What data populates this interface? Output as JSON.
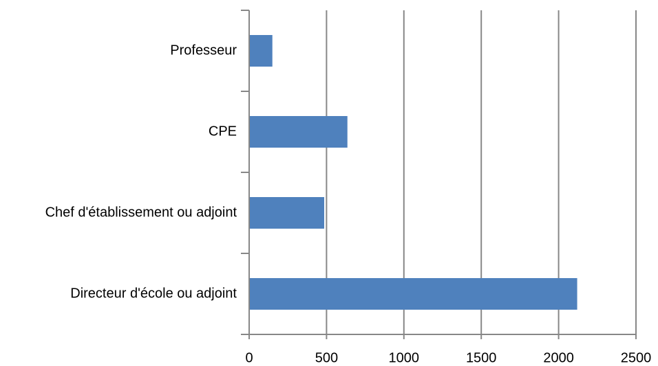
{
  "chart_data": {
    "type": "bar",
    "orientation": "horizontal",
    "categories": [
      "Professeur",
      "CPE",
      "Chef d'établissement ou adjoint",
      "Directeur d'école ou adjoint"
    ],
    "values": [
      150,
      635,
      485,
      2120
    ],
    "color": "#4f81bd",
    "xlim": [
      0,
      2500
    ],
    "xticks": [
      0,
      500,
      1000,
      1500,
      2000,
      2500
    ],
    "grid": true
  }
}
